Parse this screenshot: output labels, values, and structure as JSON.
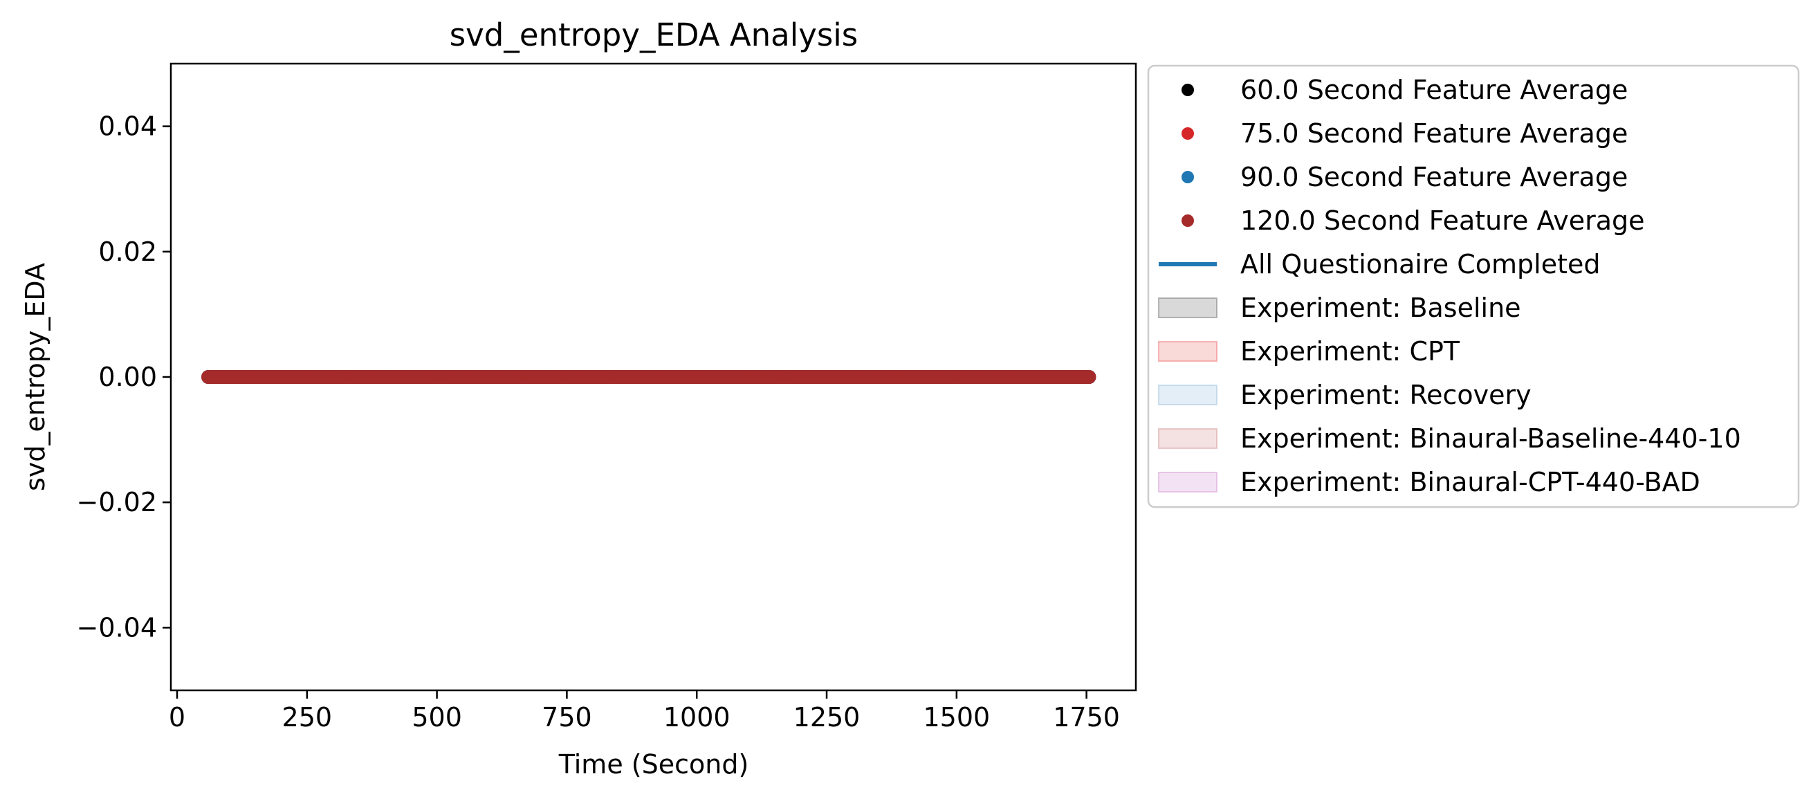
{
  "chart_data": {
    "type": "scatter",
    "title": "svd_entropy_EDA Analysis",
    "xlabel": "Time (Second)",
    "ylabel": "svd_entropy_EDA",
    "xlim": [
      -12,
      1845
    ],
    "ylim": [
      -0.05,
      0.05
    ],
    "x_ticks": [
      0,
      250,
      500,
      750,
      1000,
      1250,
      1500,
      1750
    ],
    "y_ticks": [
      0.04,
      0.02,
      0.0,
      -0.02,
      -0.04
    ],
    "x_tick_labels": [
      "0",
      "250",
      "500",
      "750",
      "1000",
      "1250",
      "1500",
      "1750"
    ],
    "y_tick_labels": [
      "0.04",
      "0.02",
      "0.00",
      "−0.02",
      "−0.04"
    ],
    "grid": false,
    "legend_placement": "outside-right-top",
    "series": [
      {
        "name": "60.0 Second Feature Average",
        "color": "#000000",
        "x_start": 60,
        "x_end": 1755,
        "x_step": 5,
        "y": 0.0
      },
      {
        "name": "75.0 Second Feature Average",
        "color": "#d62728",
        "x_start": 60,
        "x_end": 1755,
        "x_step": 5,
        "y": 0.0
      },
      {
        "name": "90.0 Second Feature Average",
        "color": "#1f77b4",
        "x_start": 60,
        "x_end": 1755,
        "x_step": 5,
        "y": 0.0
      },
      {
        "name": "120.0 Second Feature Average",
        "color": "#a52a2a",
        "x_start": 60,
        "x_end": 1755,
        "x_step": 5,
        "y": 0.0
      }
    ],
    "legend": [
      {
        "kind": "marker",
        "label": "60.0 Second Feature Average",
        "color": "#000000"
      },
      {
        "kind": "marker",
        "label": "75.0 Second Feature Average",
        "color": "#d62728"
      },
      {
        "kind": "marker",
        "label": "90.0 Second Feature Average",
        "color": "#1f77b4"
      },
      {
        "kind": "marker",
        "label": "120.0 Second Feature Average",
        "color": "#a52a2a"
      },
      {
        "kind": "line",
        "label": "All Questionaire Completed",
        "color": "#1f77b4"
      },
      {
        "kind": "patch",
        "label": "Experiment: Baseline",
        "color": "#808080"
      },
      {
        "kind": "patch",
        "label": "Experiment: CPT",
        "color": "#f08080"
      },
      {
        "kind": "patch",
        "label": "Experiment: Recovery",
        "color": "#a6c8e0"
      },
      {
        "kind": "patch",
        "label": "Experiment: Binaural-Baseline-440-10",
        "color": "#d9a0a0"
      },
      {
        "kind": "patch",
        "label": "Experiment: Binaural-CPT-440-BAD",
        "color": "#d8a0d8"
      }
    ]
  }
}
